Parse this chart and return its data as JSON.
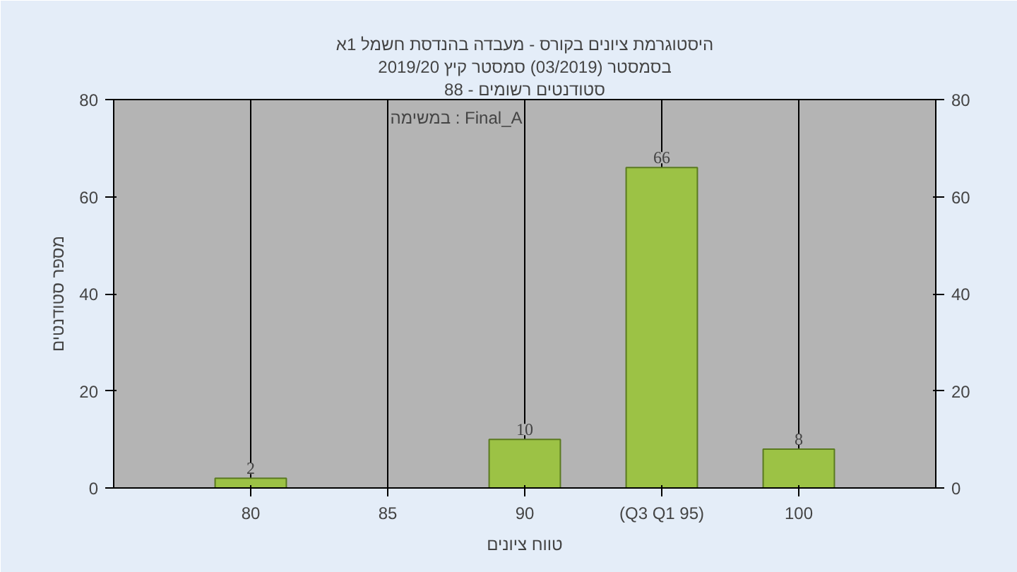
{
  "chart_data": {
    "type": "bar",
    "title": "היסטוגרמת ציונים בקורס - מעבדה בהנדסת חשמל 1א",
    "subtitle": "בסמסטר (03/2019) סמסטר קיץ 2019/20",
    "categories": [
      "80",
      "85",
      "90",
      "(Q3 Q1 95)",
      "100"
    ],
    "values": [
      2,
      null,
      10,
      66,
      8
    ],
    "color": "#9cc245",
    "xlabel": "טווח ציונים",
    "ylabel": "מספר סטודנטים",
    "annotations": [
      "סטודנטים רשומים - 88",
      "במשימה : Final_A"
    ],
    "ylim": [
      0,
      80
    ],
    "yticks": [
      0,
      20,
      40,
      60,
      80
    ],
    "y2lim": [
      0,
      80
    ],
    "y2ticks": [
      0,
      20,
      40,
      60,
      80
    ],
    "data_labels": true,
    "grid": "x"
  }
}
